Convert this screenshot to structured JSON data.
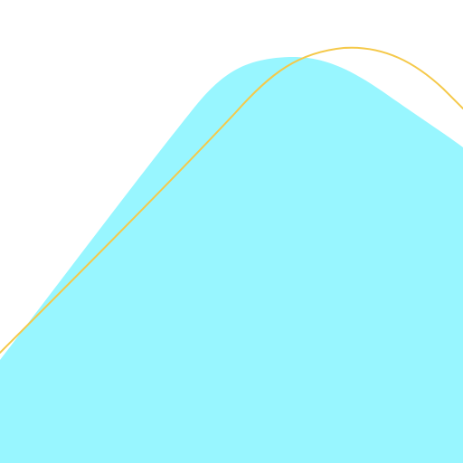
{
  "colors": {
    "background": "#ffffff",
    "fill_shape": "#98f6ff",
    "outline_curve": "#f5c94a"
  }
}
